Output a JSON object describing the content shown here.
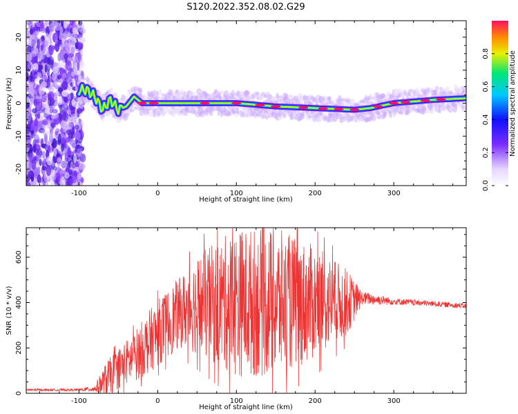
{
  "chart_data": [
    {
      "type": "heatmap",
      "title": "S120.2022.352.08.02.G29",
      "xlabel": "Height of straight line (km)",
      "ylabel": "Frequency (Hz)",
      "xlim": [
        -167,
        392
      ],
      "ylim": [
        -25,
        25
      ],
      "x_ticks": [
        "-100",
        "0",
        "100",
        "200",
        "300"
      ],
      "y_ticks": [
        "20",
        "10",
        "0",
        "-10",
        "-20"
      ],
      "ridge": {
        "x": [
          -100,
          -90,
          -80,
          -70,
          -60,
          -50,
          -40,
          -30,
          -20,
          0,
          50,
          100,
          150,
          200,
          250,
          270,
          300,
          350,
          392
        ],
        "y": [
          4,
          4,
          2,
          -2,
          1,
          -2,
          -1,
          2,
          0,
          0,
          0,
          0,
          -1,
          -1.5,
          -2,
          -1.5,
          0,
          1,
          1.5
        ]
      },
      "colorbar": {
        "label": "Normalized spectral amplitude",
        "ticks": [
          "0.0",
          "0.2",
          "0.4",
          "0.6",
          "0.8"
        ],
        "range": [
          0,
          1
        ],
        "colormap": "rainbow",
        "stops": [
          "#ffffff",
          "#8a2be2",
          "#1010ff",
          "#00c8ff",
          "#00e676",
          "#e8f000",
          "#ff8a00",
          "#ff1060"
        ]
      }
    },
    {
      "type": "line",
      "xlabel": "Height of straight line (km)",
      "ylabel": "SNR (10 * v/v)",
      "xlim": [
        -167,
        392
      ],
      "ylim": [
        0,
        730
      ],
      "x_ticks": [
        "-100",
        "0",
        "100",
        "200",
        "300"
      ],
      "y_ticks": [
        "0",
        "200",
        "400",
        "600"
      ],
      "color": "#ee3333",
      "envelope_x": [
        -167,
        -100,
        -80,
        -65,
        -50,
        -30,
        -10,
        10,
        30,
        50,
        100,
        150,
        200,
        240,
        260,
        300,
        350,
        392
      ],
      "envelope_mean": [
        15,
        15,
        20,
        60,
        110,
        160,
        230,
        300,
        360,
        390,
        400,
        400,
        400,
        400,
        420,
        405,
        395,
        385
      ],
      "envelope_spread": [
        5,
        5,
        15,
        80,
        90,
        110,
        140,
        150,
        160,
        220,
        330,
        330,
        250,
        150,
        30,
        15,
        12,
        12
      ]
    }
  ]
}
